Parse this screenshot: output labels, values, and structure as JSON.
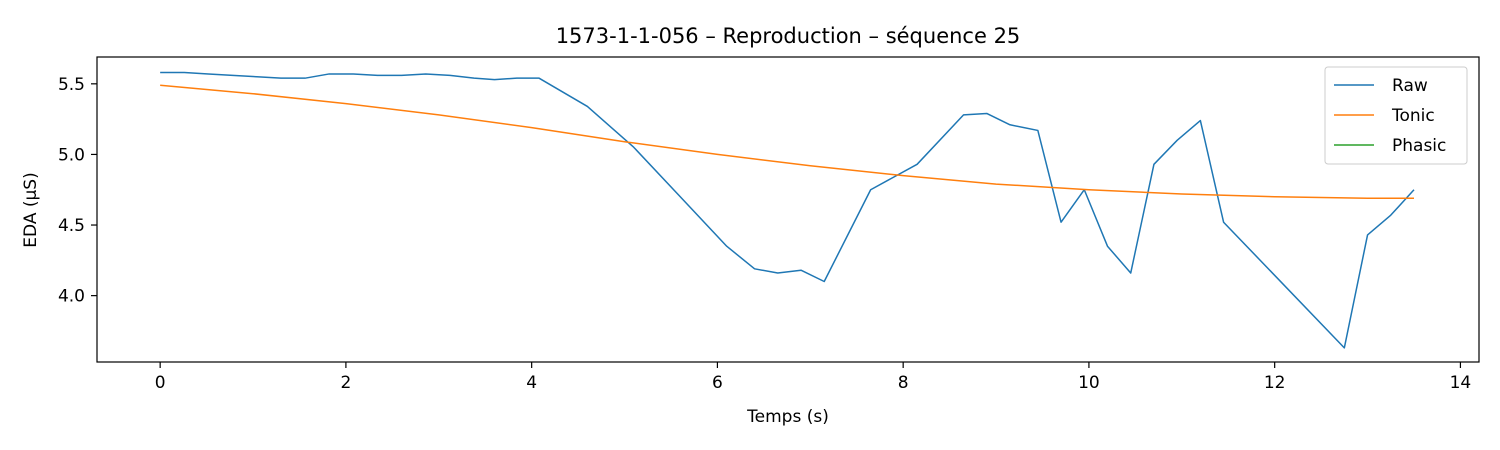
{
  "chart_data": {
    "type": "line",
    "title": "1573-1-1-056 – Reproduction – séquence 25",
    "xlabel": "Temps (s)",
    "ylabel": "EDA (µS)",
    "xlim": [
      -0.68,
      14.2
    ],
    "ylim": [
      3.53,
      5.69
    ],
    "xticks": [
      0,
      2,
      4,
      6,
      8,
      10,
      12,
      14
    ],
    "yticks": [
      4.0,
      4.5,
      5.0,
      5.5
    ],
    "grid": false,
    "legend": {
      "placement": "top-right"
    },
    "series": [
      {
        "name": "Raw",
        "color": "#1f77b4",
        "x": [
          0,
          0.26,
          0.52,
          0.78,
          1.04,
          1.3,
          1.56,
          1.82,
          2.08,
          2.34,
          2.6,
          2.86,
          3.12,
          3.38,
          3.6,
          3.84,
          4.08,
          4.6,
          5.1,
          5.6,
          6.1,
          6.4,
          6.65,
          6.9,
          7.15,
          7.65,
          8.15,
          8.65,
          8.9,
          9.15,
          9.45,
          9.7,
          9.95,
          10.2,
          10.45,
          10.7,
          10.95,
          11.2,
          11.45,
          12.75,
          13.0,
          13.25,
          13.5
        ],
        "y": [
          5.58,
          5.58,
          5.57,
          5.56,
          5.55,
          5.54,
          5.54,
          5.57,
          5.57,
          5.56,
          5.56,
          5.57,
          5.56,
          5.54,
          5.53,
          5.54,
          5.54,
          5.34,
          5.05,
          4.7,
          4.35,
          4.19,
          4.16,
          4.18,
          4.1,
          4.75,
          4.93,
          5.28,
          5.29,
          5.21,
          5.17,
          4.52,
          4.75,
          4.35,
          4.16,
          4.93,
          5.1,
          5.24,
          4.52,
          3.63,
          4.43,
          4.57,
          4.75
        ]
      },
      {
        "name": "Tonic",
        "color": "#ff7f0e",
        "x": [
          0,
          1,
          2,
          3,
          4,
          5,
          6,
          7,
          8,
          9,
          10,
          11,
          12,
          13,
          13.5
        ],
        "y": [
          5.49,
          5.43,
          5.36,
          5.28,
          5.19,
          5.09,
          5.0,
          4.92,
          4.85,
          4.79,
          4.75,
          4.72,
          4.7,
          4.69,
          4.69
        ]
      },
      {
        "name": "Phasic",
        "color": "#2ca02c",
        "x": [],
        "y": []
      }
    ]
  }
}
